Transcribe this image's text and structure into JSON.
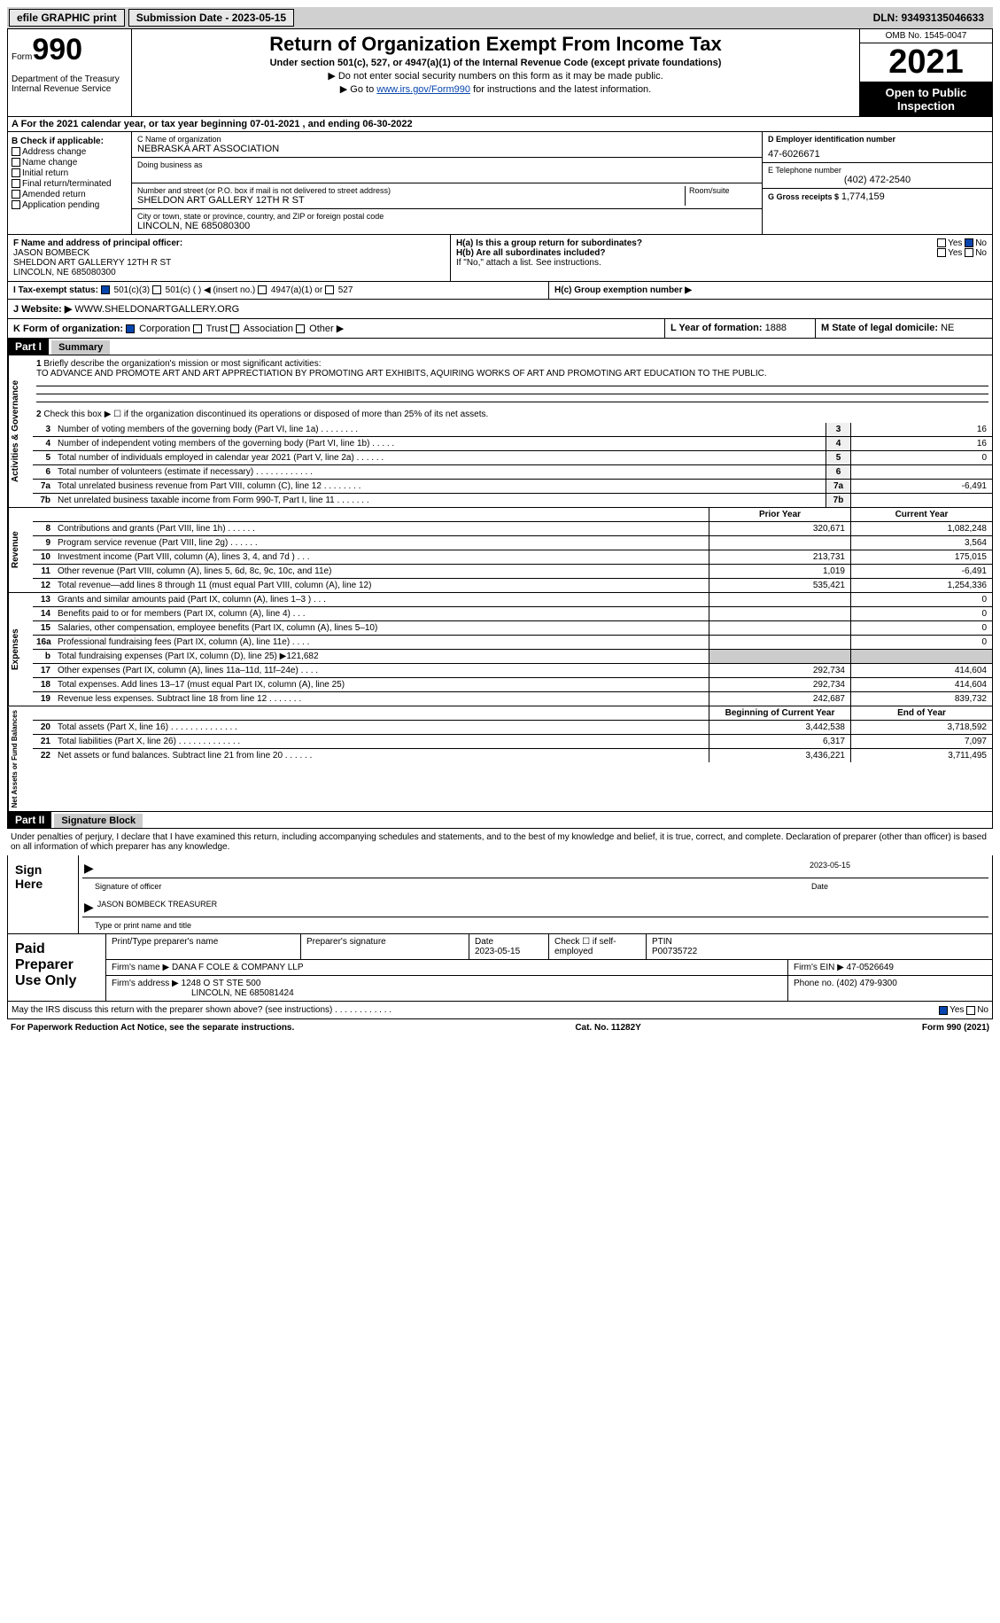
{
  "topbar": {
    "efile": "efile GRAPHIC print",
    "submission": "Submission Date - 2023-05-15",
    "dln": "DLN: 93493135046633"
  },
  "header": {
    "form_label": "Form",
    "form_num": "990",
    "dept": "Department of the Treasury Internal Revenue Service",
    "title": "Return of Organization Exempt From Income Tax",
    "subtitle": "Under section 501(c), 527, or 4947(a)(1) of the Internal Revenue Code (except private foundations)",
    "inst1": "▶ Do not enter social security numbers on this form as it may be made public.",
    "inst2_pre": "▶ Go to ",
    "inst2_link": "www.irs.gov/Form990",
    "inst2_post": " for instructions and the latest information.",
    "omb": "OMB No. 1545-0047",
    "year": "2021",
    "inspection": "Open to Public Inspection"
  },
  "section_a": "A For the 2021 calendar year, or tax year beginning 07-01-2021   , and ending 06-30-2022",
  "col_b": {
    "header": "B Check if applicable:",
    "items": [
      "Address change",
      "Name change",
      "Initial return",
      "Final return/terminated",
      "Amended return",
      "Application pending"
    ]
  },
  "col_c": {
    "name_label": "C Name of organization",
    "name": "NEBRASKA ART ASSOCIATION",
    "dba_label": "Doing business as",
    "addr_label": "Number and street (or P.O. box if mail is not delivered to street address)",
    "addr": "SHELDON ART GALLERY 12TH R ST",
    "room_label": "Room/suite",
    "city_label": "City or town, state or province, country, and ZIP or foreign postal code",
    "city": "LINCOLN, NE  685080300"
  },
  "col_d": {
    "ein_label": "D Employer identification number",
    "ein": "47-6026671",
    "phone_label": "E Telephone number",
    "phone": "(402) 472-2540",
    "gross_label": "G Gross receipts $",
    "gross": "1,774,159"
  },
  "row_f": {
    "label": "F Name and address of principal officer:",
    "name": "JASON BOMBECK",
    "addr": "SHELDON ART GALLERYY 12TH R ST",
    "city": "LINCOLN, NE  685080300",
    "ha": "H(a)  Is this a group return for subordinates?",
    "ha_ans": "No",
    "hb": "H(b)  Are all subordinates included?",
    "hb_note": "If \"No,\" attach a list. See instructions."
  },
  "tax_exempt": {
    "label": "I  Tax-exempt status:",
    "opt1": "501(c)(3)",
    "opt2": "501(c) (  ) ◀ (insert no.)",
    "opt3": "4947(a)(1) or",
    "opt4": "527",
    "hc": "H(c)  Group exemption number ▶"
  },
  "website": {
    "label": "J  Website: ▶",
    "url": "WWW.SHELDONARTGALLERY.ORG"
  },
  "row_k": {
    "label": "K Form of organization:",
    "opts": [
      "Corporation",
      "Trust",
      "Association",
      "Other ▶"
    ],
    "l_label": "L Year of formation:",
    "l_val": "1888",
    "m_label": "M State of legal domicile:",
    "m_val": "NE"
  },
  "part1": {
    "header": "Part I",
    "title": "Summary",
    "mission_label": "Briefly describe the organization's mission or most significant activities:",
    "mission": "TO ADVANCE AND PROMOTE ART AND ART APPRECTIATION BY PROMOTING ART EXHIBITS, AQUIRING WORKS OF ART AND PROMOTING ART EDUCATION TO THE PUBLIC.",
    "line2": "Check this box ▶ ☐ if the organization discontinued its operations or disposed of more than 25% of its net assets."
  },
  "governance": {
    "label": "Activities & Governance",
    "lines": [
      {
        "n": "3",
        "t": "Number of voting members of the governing body (Part VI, line 1a)   .    .    .    .    .    .    .    .",
        "v": "16"
      },
      {
        "n": "4",
        "t": "Number of independent voting members of the governing body (Part VI, line 1b)   .    .    .    .    .",
        "v": "16"
      },
      {
        "n": "5",
        "t": "Total number of individuals employed in calendar year 2021 (Part V, line 2a)   .    .    .    .    .    .",
        "v": "0"
      },
      {
        "n": "6",
        "t": "Total number of volunteers (estimate if necessary)    .    .    .    .    .    .    .    .    .    .    .    .",
        "v": ""
      },
      {
        "n": "7a",
        "t": "Total unrelated business revenue from Part VIII, column (C), line 12   .    .    .    .    .    .    .    .",
        "v": "-6,491"
      },
      {
        "n": "7b",
        "t": "Net unrelated business taxable income from Form 990-T, Part I, line 11   .    .    .    .    .    .    .",
        "v": ""
      }
    ]
  },
  "revenue": {
    "label": "Revenue",
    "col1": "Prior Year",
    "col2": "Current Year",
    "lines": [
      {
        "n": "8",
        "t": "Contributions and grants (Part VIII, line 1h)    .    .    .    .    .    .",
        "p": "320,671",
        "c": "1,082,248"
      },
      {
        "n": "9",
        "t": "Program service revenue (Part VIII, line 2g)   .    .    .    .    .    .",
        "p": "",
        "c": "3,564"
      },
      {
        "n": "10",
        "t": "Investment income (Part VIII, column (A), lines 3, 4, and 7d )    .    .    .",
        "p": "213,731",
        "c": "175,015"
      },
      {
        "n": "11",
        "t": "Other revenue (Part VIII, column (A), lines 5, 6d, 8c, 9c, 10c, and 11e)",
        "p": "1,019",
        "c": "-6,491"
      },
      {
        "n": "12",
        "t": "Total revenue—add lines 8 through 11 (must equal Part VIII, column (A), line 12)",
        "p": "535,421",
        "c": "1,254,336"
      }
    ]
  },
  "expenses": {
    "label": "Expenses",
    "lines": [
      {
        "n": "13",
        "t": "Grants and similar amounts paid (Part IX, column (A), lines 1–3 )   .    .    .",
        "p": "",
        "c": "0"
      },
      {
        "n": "14",
        "t": "Benefits paid to or for members (Part IX, column (A), line 4)   .    .    .",
        "p": "",
        "c": "0"
      },
      {
        "n": "15",
        "t": "Salaries, other compensation, employee benefits (Part IX, column (A), lines 5–10)",
        "p": "",
        "c": "0"
      },
      {
        "n": "16a",
        "t": "Professional fundraising fees (Part IX, column (A), line 11e)   .    .    .    .",
        "p": "",
        "c": "0"
      },
      {
        "n": "b",
        "t": "Total fundraising expenses (Part IX, column (D), line 25) ▶121,682",
        "p": "gray",
        "c": "gray"
      },
      {
        "n": "17",
        "t": "Other expenses (Part IX, column (A), lines 11a–11d, 11f–24e)   .    .    .    .",
        "p": "292,734",
        "c": "414,604"
      },
      {
        "n": "18",
        "t": "Total expenses. Add lines 13–17 (must equal Part IX, column (A), line 25)",
        "p": "292,734",
        "c": "414,604"
      },
      {
        "n": "19",
        "t": "Revenue less expenses. Subtract line 18 from line 12   .    .    .    .    .    .    .",
        "p": "242,687",
        "c": "839,732"
      }
    ]
  },
  "netassets": {
    "label": "Net Assets or Fund Balances",
    "col1": "Beginning of Current Year",
    "col2": "End of Year",
    "lines": [
      {
        "n": "20",
        "t": "Total assets (Part X, line 16)   .    .    .    .    .    .    .    .    .    .    .    .    .    .",
        "p": "3,442,538",
        "c": "3,718,592"
      },
      {
        "n": "21",
        "t": "Total liabilities (Part X, line 26)   .    .    .    .    .    .    .    .    .    .    .    .    .",
        "p": "6,317",
        "c": "7,097"
      },
      {
        "n": "22",
        "t": "Net assets or fund balances. Subtract line 21 from line 20   .    .    .    .    .    .",
        "p": "3,436,221",
        "c": "3,711,495"
      }
    ]
  },
  "part2": {
    "header": "Part II",
    "title": "Signature Block",
    "penalty": "Under penalties of perjury, I declare that I have examined this return, including accompanying schedules and statements, and to the best of my knowledge and belief, it is true, correct, and complete. Declaration of preparer (other than officer) is based on all information of which preparer has any knowledge."
  },
  "sign": {
    "label": "Sign Here",
    "sig_label": "Signature of officer",
    "date": "2023-05-15",
    "date_label": "Date",
    "name": "JASON BOMBECK  TREASURER",
    "name_label": "Type or print name and title"
  },
  "preparer": {
    "label": "Paid Preparer Use Only",
    "name_label": "Print/Type preparer's name",
    "sig_label": "Preparer's signature",
    "date_label": "Date",
    "date": "2023-05-15",
    "check_label": "Check ☐ if self-employed",
    "ptin_label": "PTIN",
    "ptin": "P00735722",
    "firm_name_label": "Firm's name    ▶",
    "firm_name": "DANA F COLE & COMPANY LLP",
    "firm_ein_label": "Firm's EIN ▶",
    "firm_ein": "47-0526649",
    "firm_addr_label": "Firm's address ▶",
    "firm_addr": "1248 O ST STE 500",
    "firm_city": "LINCOLN, NE  685081424",
    "phone_label": "Phone no.",
    "phone": "(402) 479-9300"
  },
  "discuss": {
    "text": "May the IRS discuss this return with the preparer shown above? (see instructions)   .    .    .    .    .    .    .    .    .    .    .    .",
    "yes": "Yes",
    "no": "No"
  },
  "footer": {
    "left": "For Paperwork Reduction Act Notice, see the separate instructions.",
    "mid": "Cat. No. 11282Y",
    "right": "Form 990 (2021)"
  }
}
